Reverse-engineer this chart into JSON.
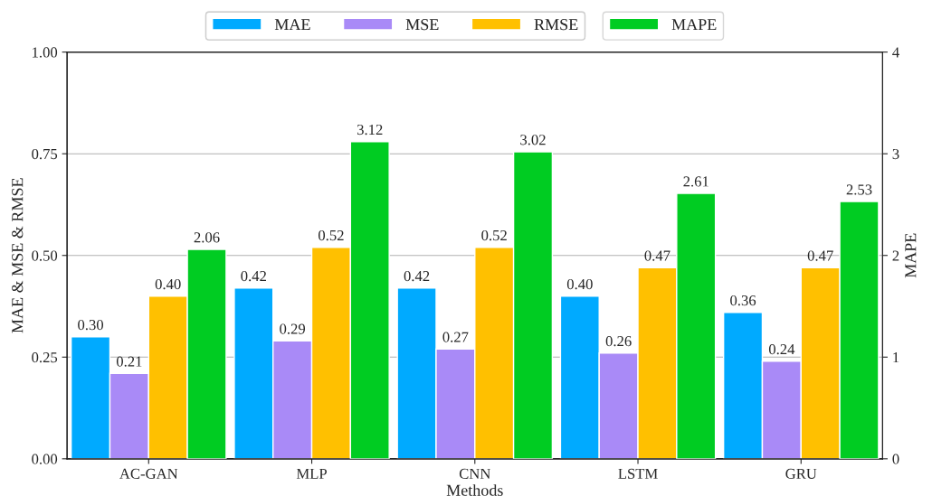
{
  "chart_data": {
    "type": "bar",
    "xlabel": "Methods",
    "ylabel": "MAE & MSE & RMSE",
    "y2label": "MAPE",
    "categories": [
      "AC-GAN",
      "MLP",
      "CNN",
      "LSTM",
      "GRU"
    ],
    "series": [
      {
        "name": "MAE",
        "color": "#00aaff",
        "values": [
          0.3,
          0.42,
          0.42,
          0.4,
          0.36
        ],
        "value_labels": [
          "0.30",
          "0.42",
          "0.42",
          "0.40",
          "0.36"
        ]
      },
      {
        "name": "MSE",
        "color": "#a98af7",
        "values": [
          0.21,
          0.29,
          0.27,
          0.26,
          0.24
        ],
        "value_labels": [
          "0.21",
          "0.29",
          "0.27",
          "0.26",
          "0.24"
        ]
      },
      {
        "name": "RMSE",
        "color": "#ffc000",
        "values": [
          0.4,
          0.52,
          0.52,
          0.47,
          0.47
        ],
        "value_labels": [
          "0.40",
          "0.52",
          "0.52",
          "0.47",
          "0.47"
        ]
      },
      {
        "name": "MAPE",
        "color": "#00cc22",
        "values": [
          2.06,
          3.12,
          3.02,
          2.61,
          2.53
        ],
        "value_labels": [
          "2.06",
          "3.12",
          "3.02",
          "2.61",
          "2.53"
        ],
        "axis": "y2"
      }
    ],
    "ylim": [
      0,
      1
    ],
    "yticks": [
      {
        "value": 0,
        "label": "0.00"
      },
      {
        "value": 0.25,
        "label": "0.25"
      },
      {
        "value": 0.5,
        "label": "0.50"
      },
      {
        "value": 0.75,
        "label": "0.75"
      },
      {
        "value": 1,
        "label": "1.00"
      }
    ],
    "y2lim": [
      0,
      4
    ],
    "y2ticks": [
      0,
      1,
      2,
      3,
      4
    ],
    "grid": "y",
    "legend": "top"
  }
}
